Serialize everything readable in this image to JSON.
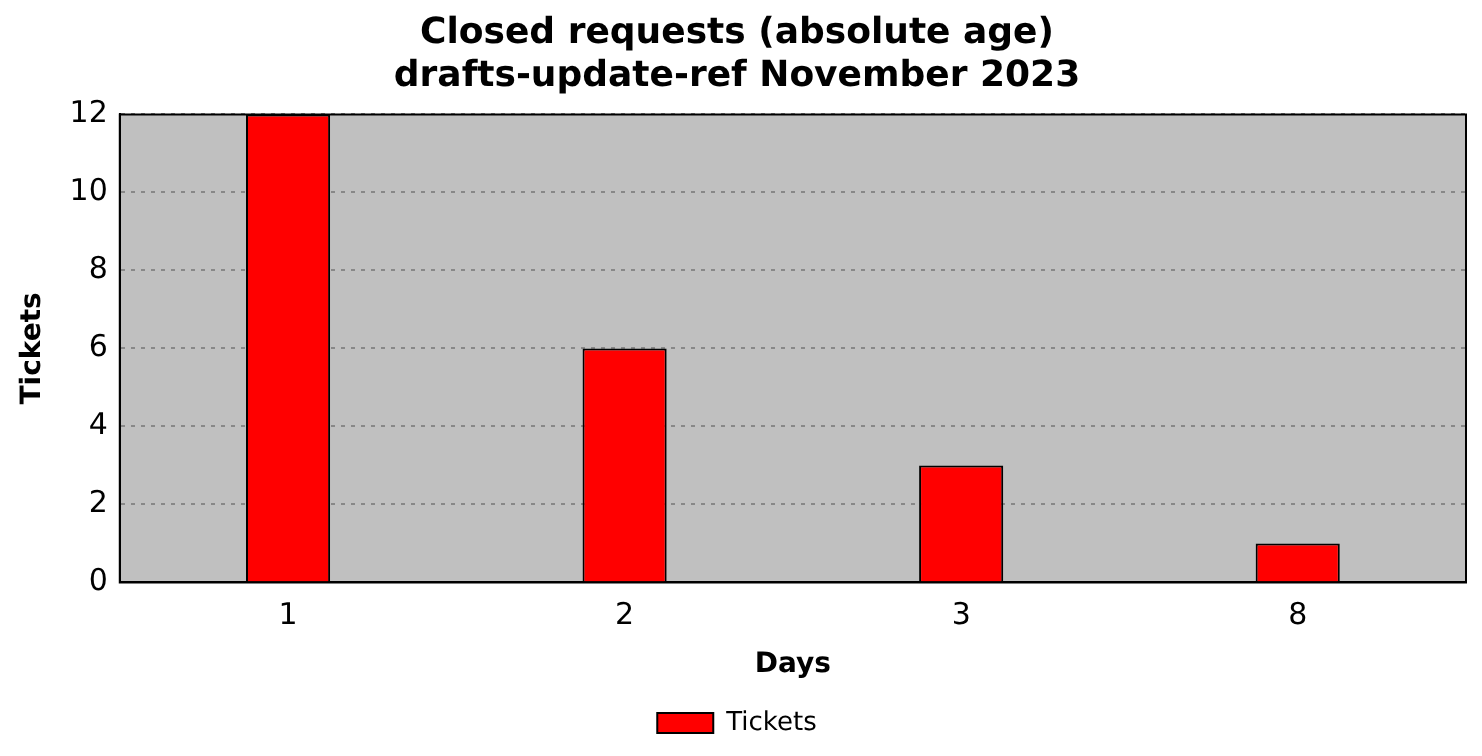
{
  "chart_data": {
    "type": "bar",
    "title": "Closed requests (absolute age)\ndrafts-update-ref November 2023",
    "xlabel": "Days",
    "ylabel": "Tickets",
    "categories": [
      "1",
      "2",
      "3",
      "8"
    ],
    "series": [
      {
        "name": "Tickets",
        "color": "#ff0000",
        "values": [
          12,
          6,
          3,
          1
        ]
      }
    ],
    "ylim": [
      0,
      12
    ],
    "yticks": [
      0,
      2,
      4,
      6,
      8,
      10,
      12
    ],
    "grid": "y",
    "legend": "bottom"
  }
}
